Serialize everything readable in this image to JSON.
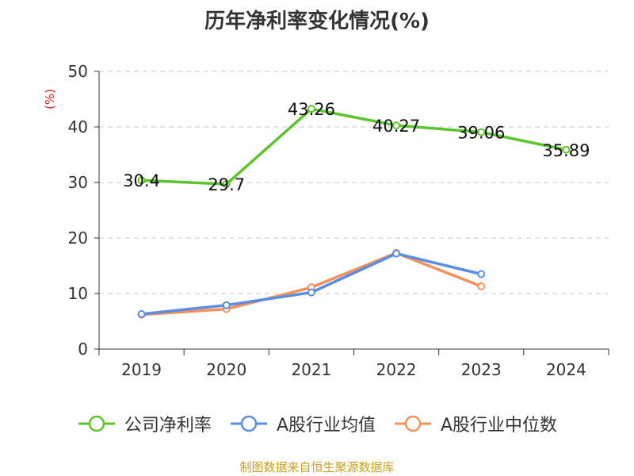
{
  "title": "历年净利率变化情况(%)",
  "source_note": "制图数据来自恒生聚源数据库",
  "chart_data": {
    "type": "line",
    "title": "历年净利率变化情况(%)",
    "ylabel": "(%)",
    "ylim": [
      0,
      50
    ],
    "yticks": [
      "0",
      "10",
      "20",
      "30",
      "40",
      "50"
    ],
    "categories": [
      "2019",
      "2020",
      "2021",
      "2022",
      "2023",
      "2024"
    ],
    "grid": true,
    "legend_position": "bottom",
    "series": [
      {
        "name": "公司净利率",
        "color": "#5ec42d",
        "values": [
          30.4,
          29.7,
          43.26,
          40.27,
          39.06,
          35.89
        ],
        "labels": [
          "30.4",
          "29.7",
          "43.26",
          "40.27",
          "39.06",
          "35.89"
        ]
      },
      {
        "name": "A股行业均值",
        "color": "#5b8de0",
        "values": [
          6.3,
          7.9,
          10.2,
          17.2,
          13.5,
          null
        ]
      },
      {
        "name": "A股行业中位数",
        "color": "#f4905a",
        "values": [
          6.2,
          7.2,
          11.1,
          17.3,
          11.3,
          null
        ]
      }
    ]
  }
}
